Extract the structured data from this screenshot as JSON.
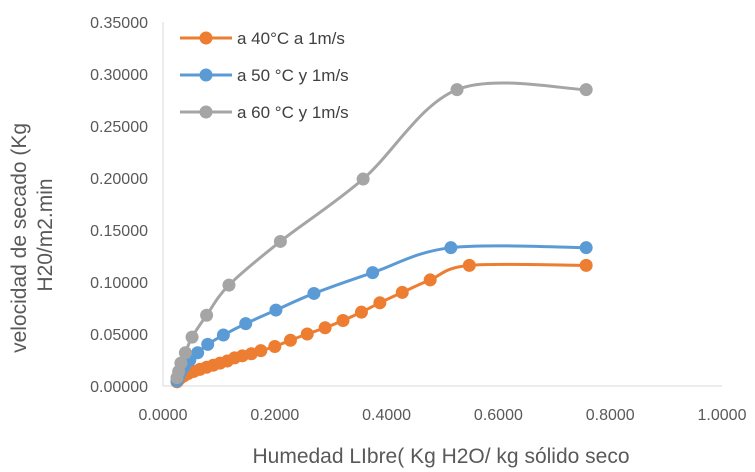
{
  "chart_data": {
    "type": "line",
    "title": "",
    "xlabel": "Humedad LIbre( Kg H2O/ kg sólido seco",
    "ylabel_lines": [
      "velocidad de secado (Kg",
      "H20/m2.min"
    ],
    "xlim": [
      0,
      1
    ],
    "ylim": [
      0,
      0.35
    ],
    "x_ticks": [
      "0.0000",
      "0.2000",
      "0.4000",
      "0.6000",
      "0.8000",
      "1.0000"
    ],
    "y_ticks": [
      "0.00000",
      "0.05000",
      "0.10000",
      "0.15000",
      "0.20000",
      "0.25000",
      "0.30000",
      "0.35000"
    ],
    "grid": false,
    "legend_position": "top-left",
    "series": [
      {
        "name": "a 40°C a 1m/s",
        "color": "#ED7D31",
        "points": [
          [
            0.025,
            0.004
          ],
          [
            0.028,
            0.006
          ],
          [
            0.032,
            0.008
          ],
          [
            0.038,
            0.01
          ],
          [
            0.045,
            0.012
          ],
          [
            0.055,
            0.014
          ],
          [
            0.066,
            0.016
          ],
          [
            0.078,
            0.018
          ],
          [
            0.09,
            0.02
          ],
          [
            0.102,
            0.022
          ],
          [
            0.115,
            0.024
          ],
          [
            0.128,
            0.027
          ],
          [
            0.142,
            0.029
          ],
          [
            0.158,
            0.031
          ],
          [
            0.175,
            0.034
          ],
          [
            0.2,
            0.038
          ],
          [
            0.228,
            0.044
          ],
          [
            0.258,
            0.05
          ],
          [
            0.29,
            0.056
          ],
          [
            0.322,
            0.063
          ],
          [
            0.355,
            0.071
          ],
          [
            0.388,
            0.08
          ],
          [
            0.428,
            0.09
          ],
          [
            0.478,
            0.102
          ],
          [
            0.548,
            0.116
          ],
          [
            0.757,
            0.116
          ]
        ]
      },
      {
        "name": "a 50 °C y 1m/s",
        "color": "#5B9BD5",
        "points": [
          [
            0.025,
            0.005
          ],
          [
            0.028,
            0.009
          ],
          [
            0.032,
            0.014
          ],
          [
            0.038,
            0.019
          ],
          [
            0.048,
            0.025
          ],
          [
            0.062,
            0.032
          ],
          [
            0.08,
            0.04
          ],
          [
            0.108,
            0.049
          ],
          [
            0.148,
            0.06
          ],
          [
            0.202,
            0.073
          ],
          [
            0.27,
            0.089
          ],
          [
            0.375,
            0.109
          ],
          [
            0.515,
            0.133
          ],
          [
            0.757,
            0.133
          ]
        ]
      },
      {
        "name": "a 60 °C y 1m/s",
        "color": "#A5A5A5",
        "points": [
          [
            0.025,
            0.008
          ],
          [
            0.028,
            0.014
          ],
          [
            0.032,
            0.022
          ],
          [
            0.04,
            0.032
          ],
          [
            0.052,
            0.047
          ],
          [
            0.078,
            0.068
          ],
          [
            0.118,
            0.097
          ],
          [
            0.21,
            0.139
          ],
          [
            0.358,
            0.199
          ],
          [
            0.526,
            0.285
          ],
          [
            0.757,
            0.285
          ]
        ]
      }
    ]
  }
}
